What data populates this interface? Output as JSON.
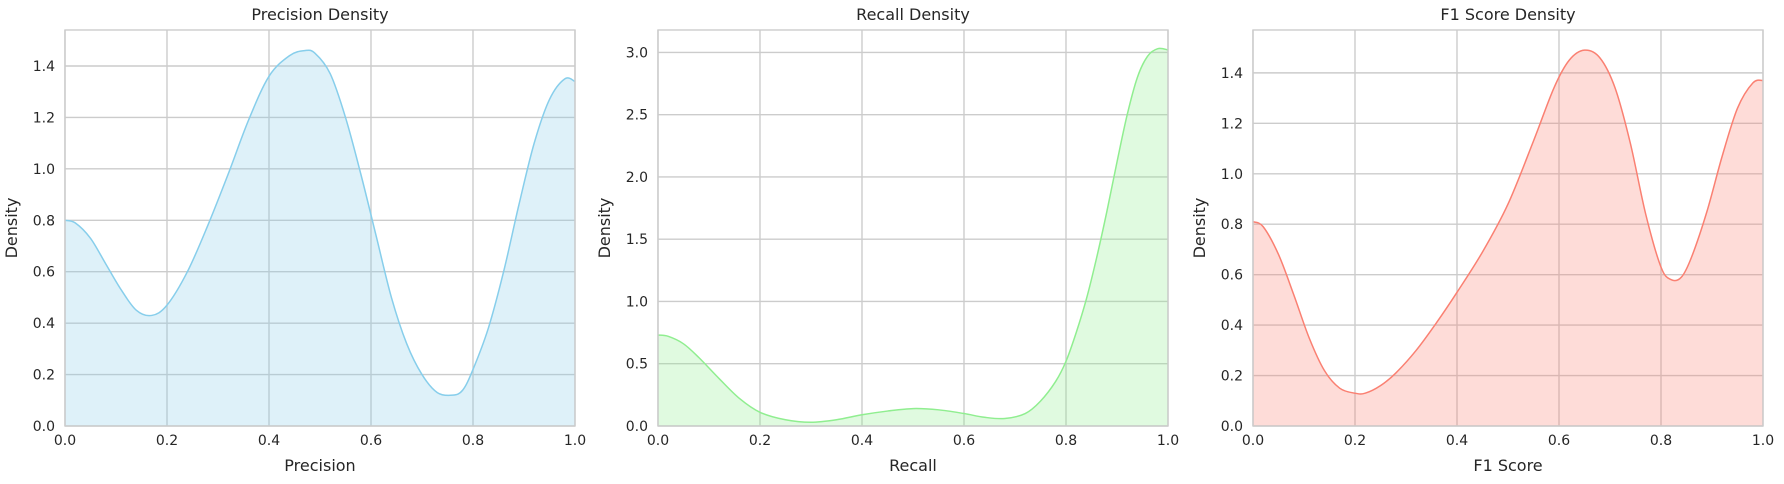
{
  "chart_data": [
    {
      "type": "area",
      "title": "Precision Density",
      "xlabel": "Precision",
      "ylabel": "Density",
      "xlim": [
        0,
        1
      ],
      "ylim": [
        0,
        1.54
      ],
      "xticks": [
        "0.0",
        "0.2",
        "0.4",
        "0.6",
        "0.8",
        "1.0"
      ],
      "yticks": [
        "0.0",
        "0.2",
        "0.4",
        "0.6",
        "0.8",
        "1.0",
        "1.2",
        "1.4"
      ],
      "grid": true,
      "color": "#87ceeb",
      "series": [
        {
          "x": [
            0.0,
            0.02,
            0.05,
            0.08,
            0.11,
            0.14,
            0.17,
            0.2,
            0.24,
            0.28,
            0.32,
            0.36,
            0.4,
            0.44,
            0.47,
            0.49,
            0.52,
            0.55,
            0.58,
            0.61,
            0.64,
            0.67,
            0.7,
            0.73,
            0.76,
            0.78,
            0.8,
            0.83,
            0.86,
            0.89,
            0.92,
            0.95,
            0.98,
            1.0
          ],
          "y": [
            0.8,
            0.79,
            0.73,
            0.63,
            0.53,
            0.45,
            0.43,
            0.47,
            0.6,
            0.78,
            0.98,
            1.19,
            1.36,
            1.44,
            1.46,
            1.45,
            1.37,
            1.2,
            0.98,
            0.74,
            0.5,
            0.32,
            0.2,
            0.13,
            0.12,
            0.14,
            0.22,
            0.38,
            0.6,
            0.86,
            1.1,
            1.27,
            1.35,
            1.34
          ]
        }
      ]
    },
    {
      "type": "area",
      "title": "Recall Density",
      "xlabel": "Recall",
      "ylabel": "Density",
      "xlim": [
        0,
        1
      ],
      "ylim": [
        0,
        3.18
      ],
      "xticks": [
        "0.0",
        "0.2",
        "0.4",
        "0.6",
        "0.8",
        "1.0"
      ],
      "yticks": [
        "0.0",
        "0.5",
        "1.0",
        "1.5",
        "2.0",
        "2.5",
        "3.0"
      ],
      "grid": true,
      "color": "#90ee90",
      "series": [
        {
          "x": [
            0.0,
            0.02,
            0.05,
            0.08,
            0.12,
            0.16,
            0.2,
            0.25,
            0.3,
            0.35,
            0.4,
            0.45,
            0.5,
            0.55,
            0.6,
            0.64,
            0.68,
            0.72,
            0.75,
            0.78,
            0.8,
            0.82,
            0.84,
            0.86,
            0.88,
            0.9,
            0.92,
            0.94,
            0.96,
            0.98,
            1.0
          ],
          "y": [
            0.73,
            0.72,
            0.66,
            0.55,
            0.38,
            0.22,
            0.11,
            0.05,
            0.03,
            0.05,
            0.09,
            0.12,
            0.14,
            0.13,
            0.1,
            0.07,
            0.06,
            0.1,
            0.2,
            0.36,
            0.52,
            0.75,
            1.02,
            1.35,
            1.72,
            2.12,
            2.5,
            2.8,
            2.97,
            3.03,
            3.02
          ]
        }
      ]
    },
    {
      "type": "area",
      "title": "F1 Score Density",
      "xlabel": "F1 Score",
      "ylabel": "Density",
      "xlim": [
        0,
        1
      ],
      "ylim": [
        0,
        1.57
      ],
      "xticks": [
        "0.0",
        "0.2",
        "0.4",
        "0.6",
        "0.8",
        "1.0"
      ],
      "yticks": [
        "0.0",
        "0.2",
        "0.4",
        "0.6",
        "0.8",
        "1.0",
        "1.2",
        "1.4"
      ],
      "grid": true,
      "color": "#fa8072",
      "series": [
        {
          "x": [
            0.0,
            0.02,
            0.05,
            0.08,
            0.11,
            0.14,
            0.17,
            0.2,
            0.22,
            0.25,
            0.28,
            0.32,
            0.36,
            0.4,
            0.45,
            0.5,
            0.55,
            0.59,
            0.62,
            0.65,
            0.68,
            0.71,
            0.74,
            0.77,
            0.8,
            0.82,
            0.84,
            0.86,
            0.89,
            0.92,
            0.95,
            0.98,
            1.0
          ],
          "y": [
            0.81,
            0.79,
            0.68,
            0.52,
            0.35,
            0.22,
            0.15,
            0.13,
            0.13,
            0.16,
            0.21,
            0.3,
            0.41,
            0.53,
            0.69,
            0.88,
            1.13,
            1.34,
            1.45,
            1.49,
            1.46,
            1.34,
            1.12,
            0.84,
            0.63,
            0.58,
            0.59,
            0.67,
            0.85,
            1.07,
            1.26,
            1.36,
            1.37
          ]
        }
      ]
    }
  ]
}
